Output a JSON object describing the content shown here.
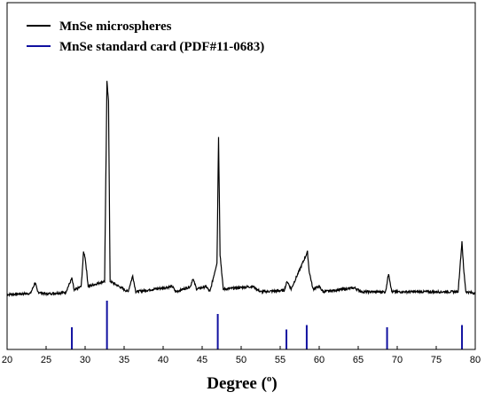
{
  "chart_data": {
    "type": "line",
    "title": "",
    "xlabel": "Degree (°)",
    "xlabel_main": "Degree (",
    "xlabel_sup": "o",
    "xlabel_close": ")",
    "ylabel": "",
    "xlim": [
      20,
      80
    ],
    "xticks": [
      20,
      25,
      30,
      35,
      40,
      45,
      50,
      55,
      60,
      65,
      70,
      75,
      80
    ],
    "grid": false,
    "legend_position": "top-left",
    "series": [
      {
        "name": "MnSe microspheres",
        "type": "line",
        "color": "#000000",
        "baseline": 5,
        "points": [
          [
            20,
            5
          ],
          [
            23,
            5.4
          ],
          [
            23.6,
            9.5
          ],
          [
            23.9,
            6
          ],
          [
            25,
            5.2
          ],
          [
            27.5,
            5.8
          ],
          [
            28.3,
            11
          ],
          [
            28.6,
            6.5
          ],
          [
            29.5,
            8
          ],
          [
            29.8,
            21
          ],
          [
            30,
            19
          ],
          [
            30.4,
            8
          ],
          [
            32.5,
            10
          ],
          [
            32.8,
            85
          ],
          [
            33.0,
            78
          ],
          [
            33.2,
            10
          ],
          [
            35.5,
            6
          ],
          [
            36.1,
            12
          ],
          [
            36.5,
            6
          ],
          [
            41.2,
            8
          ],
          [
            41.6,
            6
          ],
          [
            43.5,
            8
          ],
          [
            43.8,
            11
          ],
          [
            44.3,
            7
          ],
          [
            45.5,
            8
          ],
          [
            46,
            6
          ],
          [
            46.9,
            17
          ],
          [
            47.1,
            64
          ],
          [
            47.3,
            20
          ],
          [
            47.7,
            7
          ],
          [
            51.5,
            8
          ],
          [
            52.5,
            6
          ],
          [
            55.5,
            6.5
          ],
          [
            55.9,
            10
          ],
          [
            56.4,
            7
          ],
          [
            58.5,
            21
          ],
          [
            58.7,
            14
          ],
          [
            59.2,
            7
          ],
          [
            60,
            8
          ],
          [
            60.5,
            6
          ],
          [
            64.5,
            7.5
          ],
          [
            65.5,
            6
          ],
          [
            68.5,
            6
          ],
          [
            68.9,
            13
          ],
          [
            69.3,
            6
          ],
          [
            75,
            6
          ],
          [
            77.8,
            6
          ],
          [
            78.3,
            25
          ],
          [
            78.5,
            15
          ],
          [
            78.8,
            6
          ],
          [
            80,
            5.5
          ]
        ]
      },
      {
        "name": "MnSe standard card (PDF#11-0683)",
        "type": "stick",
        "color": "#1010a0",
        "positions": [
          28.3,
          32.8,
          47.0,
          55.8,
          58.4,
          68.7,
          78.3
        ],
        "intensities": [
          10,
          22,
          16,
          9,
          11,
          10,
          11
        ]
      }
    ]
  }
}
